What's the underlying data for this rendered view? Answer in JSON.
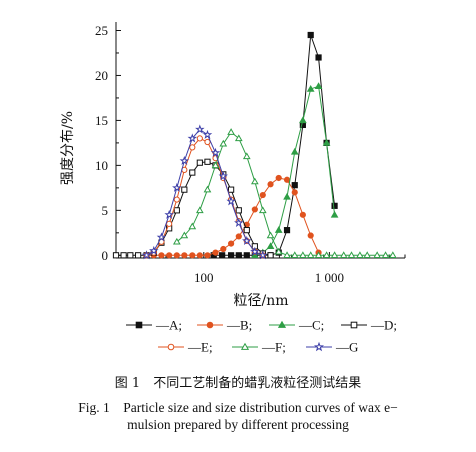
{
  "chart_data": {
    "type": "line",
    "xlabel": "粒径/nm",
    "ylabel": "强度分布/%",
    "xscale": "log",
    "xlim": [
      20,
      4000
    ],
    "ylim": [
      -0.3,
      25.5
    ],
    "x_ticks": [
      {
        "value": 100,
        "label": "100"
      },
      {
        "value": 1000,
        "label": "1 000"
      }
    ],
    "y_ticks": [
      {
        "value": 0,
        "label": "0"
      },
      {
        "value": 5,
        "label": "5"
      },
      {
        "value": 10,
        "label": "10"
      },
      {
        "value": 15,
        "label": "15"
      },
      {
        "value": 20,
        "label": "20"
      },
      {
        "value": 25,
        "label": "25"
      }
    ],
    "grid": false,
    "legend_position": "bottom",
    "series": [
      {
        "name": "A",
        "label": "—A;",
        "color": "#111111",
        "marker": "filled-square",
        "x": [
          120,
          140,
          165,
          190,
          220,
          255,
          295,
          340,
          395,
          460,
          530,
          615,
          710,
          820,
          950,
          1100
        ],
        "y": [
          0,
          0,
          0,
          0,
          0,
          0,
          0,
          0,
          0.3,
          2.8,
          7.8,
          14.5,
          24.5,
          22.0,
          12.5,
          5.5
        ]
      },
      {
        "name": "B",
        "label": "—B;",
        "color": "#e0531f",
        "marker": "filled-circle",
        "x": [
          35,
          40,
          46,
          53,
          61,
          70,
          81,
          93,
          107,
          124,
          143,
          165,
          190,
          220,
          255,
          295,
          340,
          395,
          460,
          530,
          615,
          710,
          820
        ],
        "y": [
          0,
          0,
          0,
          0,
          0,
          0,
          0,
          0,
          0,
          0.3,
          0.7,
          1.3,
          2.1,
          3.4,
          5.1,
          6.7,
          7.9,
          8.6,
          8.4,
          7.0,
          4.5,
          2.2,
          0.3
        ]
      },
      {
        "name": "C",
        "label": "—C;",
        "color": "#2e9e45",
        "marker": "filled-triangle",
        "x": [
          255,
          295,
          340,
          395,
          460,
          530,
          615,
          710,
          820,
          950,
          1100
        ],
        "y": [
          0,
          0.3,
          1.0,
          2.8,
          6.5,
          11.5,
          15.0,
          18.5,
          18.8,
          12.5,
          4.5
        ]
      },
      {
        "name": "D",
        "label": "—D;",
        "color": "#111111",
        "marker": "open-square",
        "x": [
          20,
          23,
          26,
          30,
          35,
          40,
          46,
          53,
          61,
          70,
          81,
          93,
          107,
          124,
          143,
          165,
          190,
          220,
          255,
          295,
          340
        ],
        "y": [
          0,
          0,
          0,
          0,
          0,
          0.3,
          1.4,
          3.0,
          5.0,
          7.3,
          9.2,
          10.3,
          10.4,
          10.0,
          9.0,
          7.3,
          5.0,
          2.8,
          1.0,
          0.2,
          0
        ]
      },
      {
        "name": "E",
        "label": "—E;",
        "color": "#e0531f",
        "marker": "open-circle",
        "x": [
          35,
          40,
          46,
          53,
          61,
          70,
          81,
          93,
          107,
          124,
          143,
          165,
          190,
          220,
          255,
          295
        ],
        "y": [
          0,
          0.3,
          1.5,
          3.5,
          6.2,
          9.5,
          12.0,
          13.0,
          12.6,
          10.8,
          8.6,
          6.2,
          3.8,
          1.6,
          0.4,
          0
        ]
      },
      {
        "name": "F",
        "label": "—F;",
        "color": "#2e9e45",
        "marker": "open-triangle",
        "x": [
          61,
          70,
          81,
          93,
          107,
          124,
          143,
          165,
          190,
          220,
          255,
          295,
          340,
          395,
          460,
          530,
          615,
          710,
          820,
          950,
          1100,
          1300,
          1500,
          1750,
          2000,
          2400,
          2800,
          3200
        ],
        "y": [
          1.5,
          2.2,
          3.2,
          5.0,
          7.3,
          10.0,
          12.4,
          13.7,
          13.0,
          11.0,
          8.2,
          5.0,
          2.2,
          0.4,
          0,
          0,
          0,
          0,
          0,
          0,
          0,
          0,
          0,
          0,
          0,
          0,
          0,
          0
        ]
      },
      {
        "name": "G",
        "label": "—G",
        "color": "#3d3fa8",
        "marker": "open-star",
        "x": [
          35,
          40,
          46,
          53,
          61,
          70,
          81,
          93,
          107,
          124,
          143,
          165,
          190,
          220,
          255,
          295
        ],
        "y": [
          0,
          0.5,
          2.0,
          4.5,
          7.5,
          10.5,
          13.0,
          14.0,
          13.4,
          11.4,
          8.8,
          6.0,
          3.6,
          1.6,
          0.4,
          0
        ]
      }
    ]
  },
  "caption": {
    "chinese": "图 1　不同工艺制备的蜡乳液粒径测试结果",
    "english_line1": "Fig. 1　Particle size and size distribution curves of wax e−",
    "english_line2": "mulsion prepared by different processing"
  }
}
